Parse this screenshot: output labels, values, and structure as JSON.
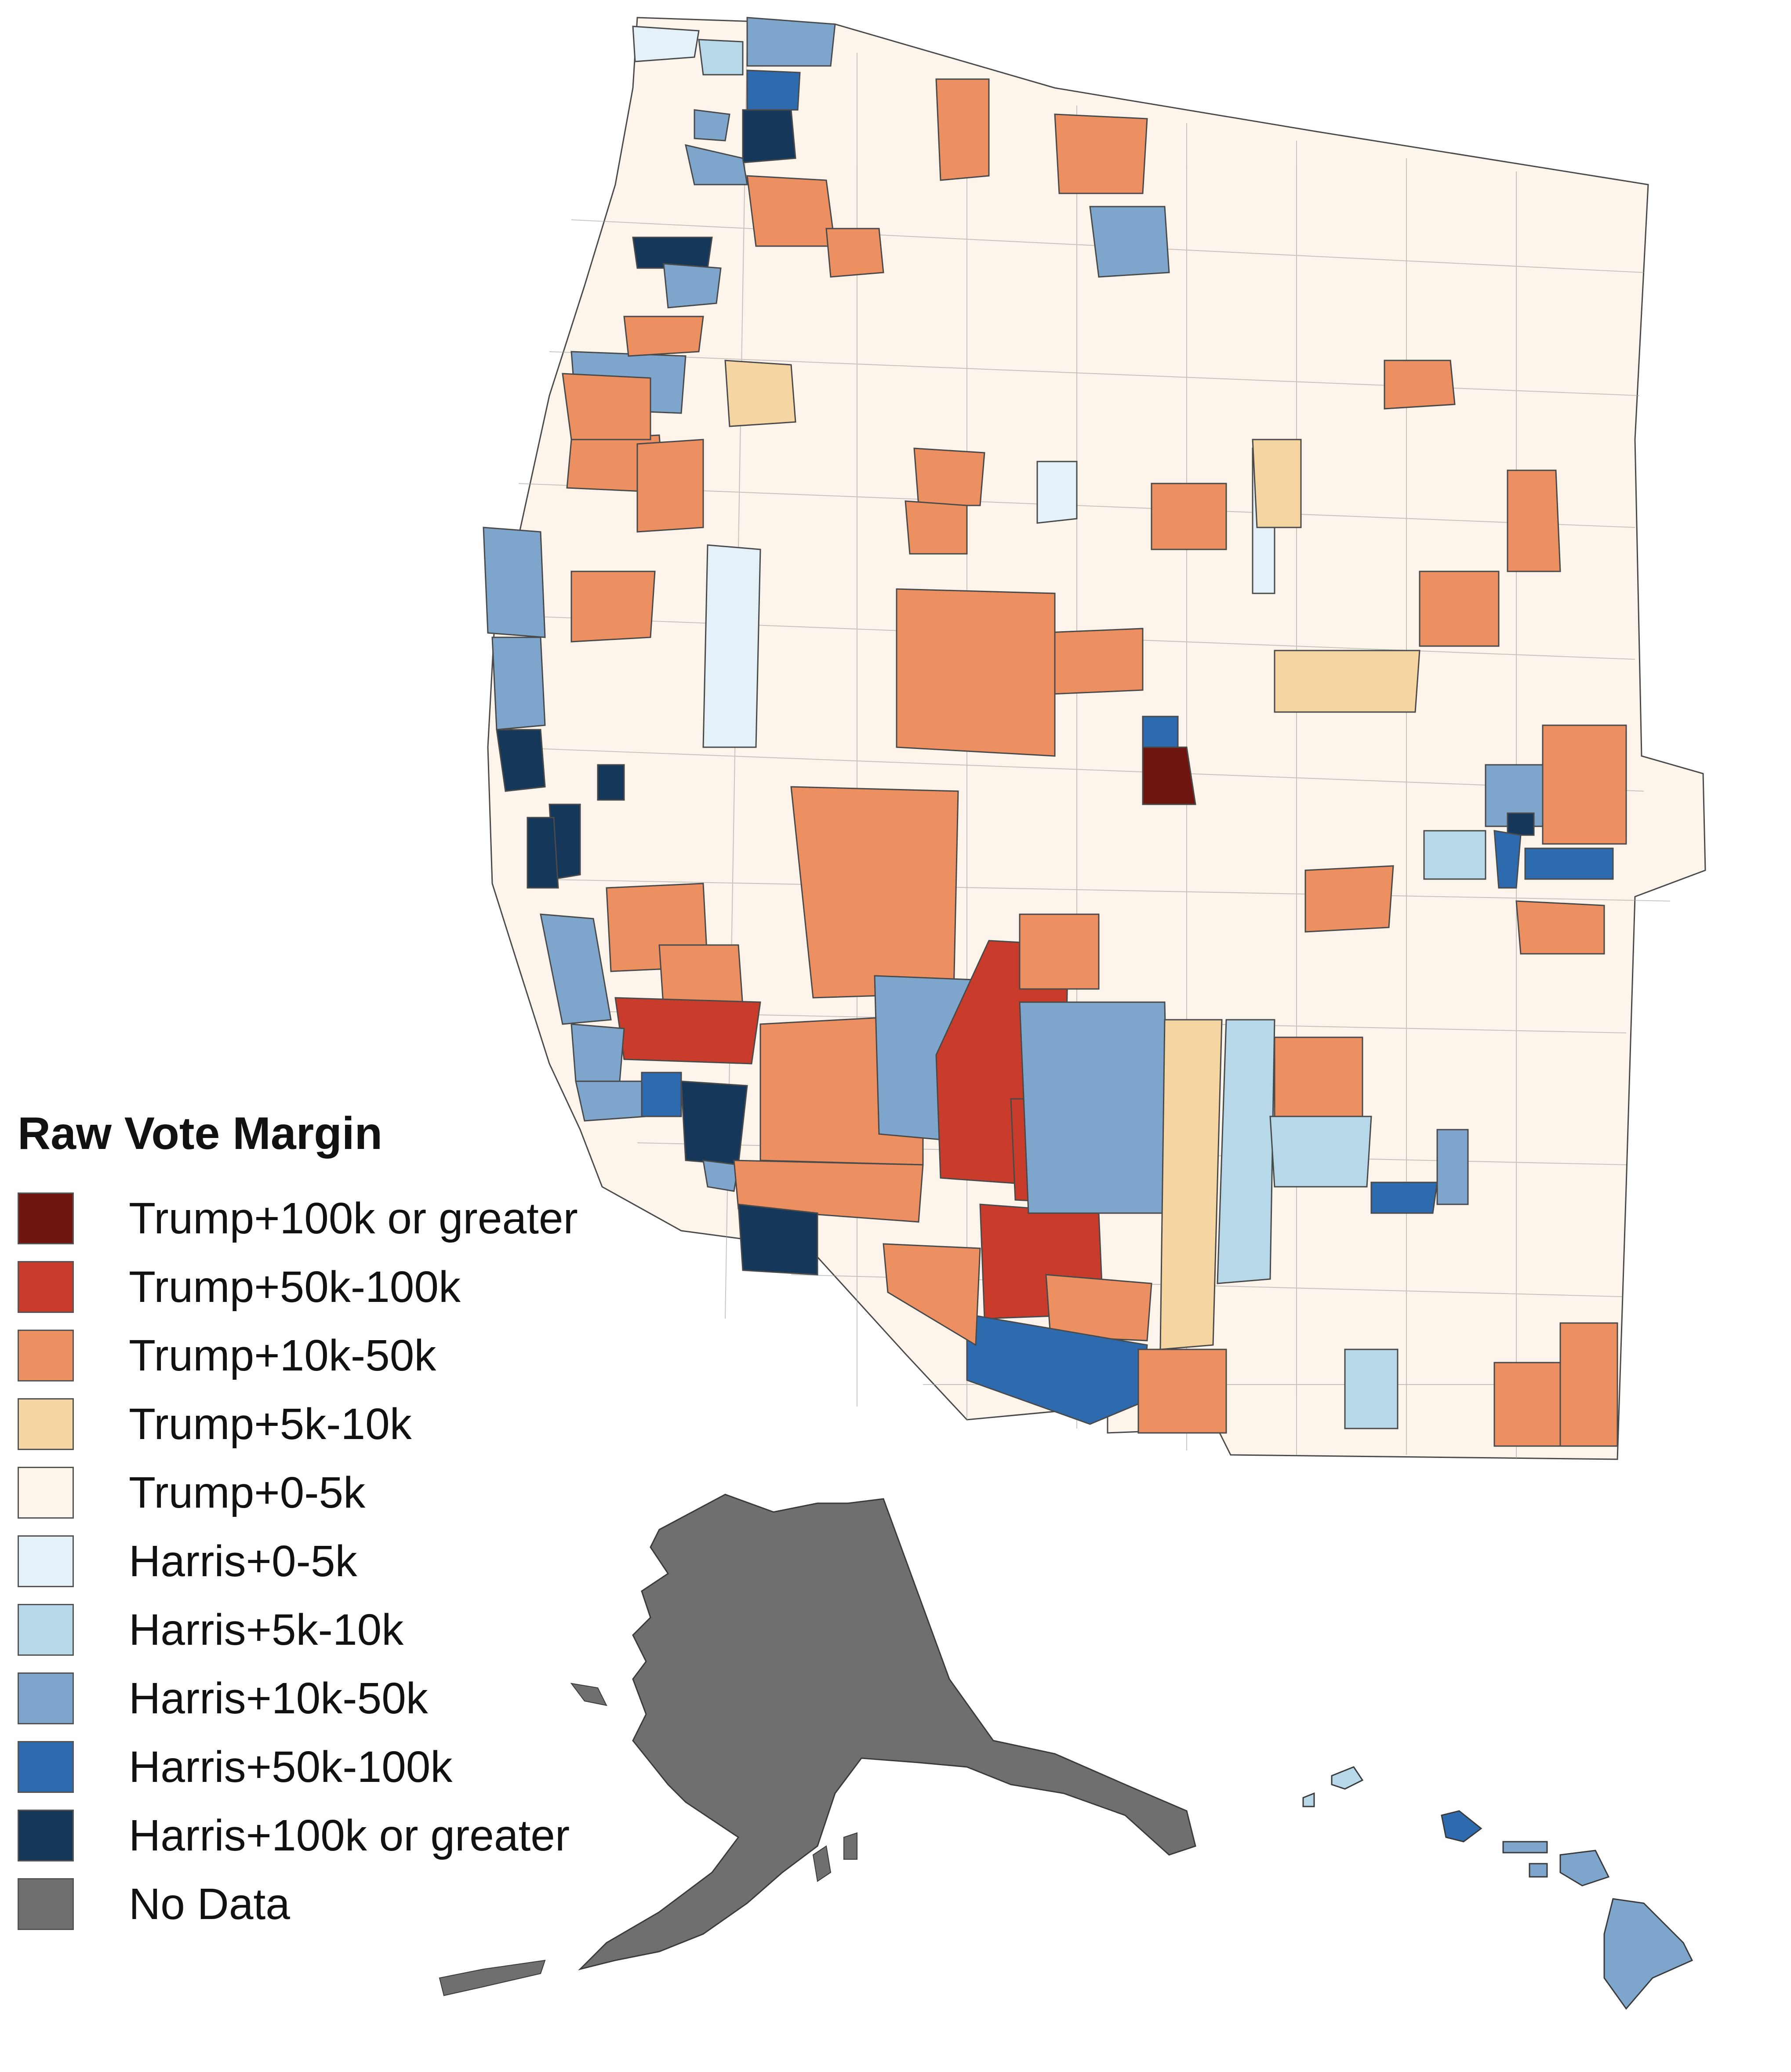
{
  "legend": {
    "title": "Raw Vote Margin",
    "items": [
      {
        "key": "trump-100k-plus",
        "label": "Trump+100k or greater",
        "color": "#6e1510"
      },
      {
        "key": "trump-50k-100k",
        "label": "Trump+50k-100k",
        "color": "#c93c2b"
      },
      {
        "key": "trump-10k-50k",
        "label": "Trump+10k-50k",
        "color": "#ec8f61"
      },
      {
        "key": "trump-5k-10k",
        "label": "Trump+5k-10k",
        "color": "#f5d5a2"
      },
      {
        "key": "trump-0-5k",
        "label": "Trump+0-5k",
        "color": "#fdf5ec"
      },
      {
        "key": "harris-0-5k",
        "label": "Harris+0-5k",
        "color": "#e4f1f8"
      },
      {
        "key": "harris-5k-10k",
        "label": "Harris+5k-10k",
        "color": "#b6d8e8"
      },
      {
        "key": "harris-10k-50k",
        "label": "Harris+10k-50k",
        "color": "#7ea6cc"
      },
      {
        "key": "harris-50k-100k",
        "label": "Harris+50k-100k",
        "color": "#2e6aae"
      },
      {
        "key": "harris-100k-plus",
        "label": "Harris+100k or greater",
        "color": "#15375a"
      },
      {
        "key": "no-data",
        "label": "No Data",
        "color": "#6f6f6f"
      }
    ]
  },
  "map": {
    "regions": [
      "Contiguous Western States",
      "Alaska",
      "Hawaii"
    ],
    "alaska_category": "no-data",
    "hawaii_category": "harris-10k-50k",
    "border_color": "#4a4a4a"
  }
}
